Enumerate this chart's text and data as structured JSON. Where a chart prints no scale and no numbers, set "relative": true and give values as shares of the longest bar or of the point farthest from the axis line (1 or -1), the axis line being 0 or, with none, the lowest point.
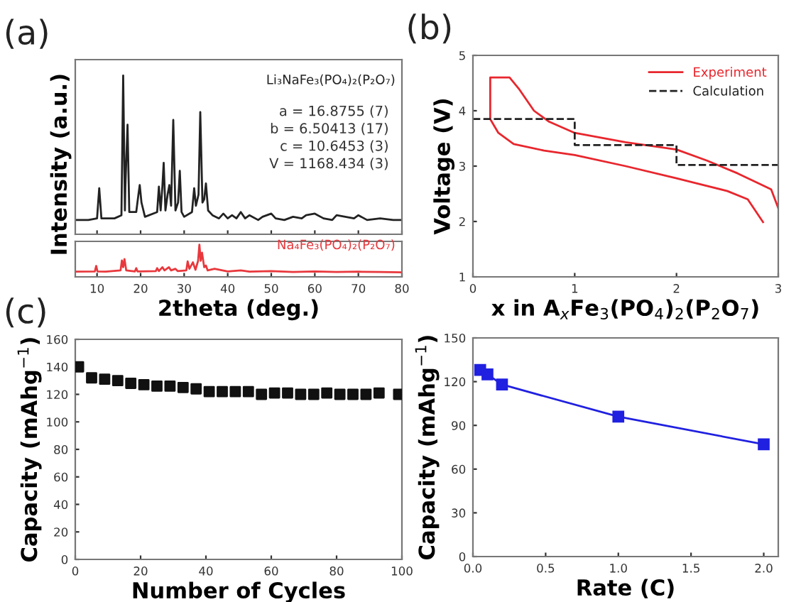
{
  "chart_data": [
    {
      "type": "line",
      "title": "(a)",
      "relative": true,
      "xlim": [
        5,
        80
      ],
      "xticks": [
        10,
        20,
        30,
        40,
        50,
        60,
        70,
        80
      ],
      "tick_labels": false,
      "ylabel": "Intensity (a.u.)",
      "grid": false,
      "legend": false,
      "annotations": [
        "a = 16.8755 (7)",
        "b = 6.50413 (17)",
        "c = 10.6453 (3)",
        "V = 1168.434 (3)"
      ],
      "series": [
        {
          "name": "Li₃NaFe₃(PO₄)₂(P₂O₇)",
          "color": "#222222",
          "x": [
            5,
            8,
            10,
            10.5,
            11,
            14,
            15.6,
            16,
            16.4,
            16.5,
            17,
            17.4,
            19,
            19.5,
            19.8,
            20.2,
            21,
            23.8,
            24.2,
            24.6,
            25,
            25.3,
            25.7,
            26.2,
            26.6,
            27,
            27.5,
            28,
            28.6,
            29,
            29.4,
            30,
            31.8,
            32.3,
            32.7,
            33.3,
            33.7,
            34.2,
            34.6,
            35,
            35.5,
            36.5,
            38,
            39,
            40,
            41,
            42,
            43,
            44,
            45,
            47,
            48,
            50,
            51,
            53,
            55,
            57,
            58,
            60,
            62,
            64,
            65,
            67,
            69,
            70,
            72,
            75,
            78,
            80
          ],
          "values": [
            0.09,
            0.09,
            0.1,
            0.29,
            0.1,
            0.1,
            0.12,
            1.0,
            0.15,
            0.3,
            0.69,
            0.14,
            0.14,
            0.25,
            0.31,
            0.2,
            0.11,
            0.14,
            0.3,
            0.15,
            0.3,
            0.45,
            0.15,
            0.25,
            0.31,
            0.18,
            0.72,
            0.15,
            0.2,
            0.4,
            0.14,
            0.11,
            0.14,
            0.29,
            0.18,
            0.25,
            0.77,
            0.2,
            0.22,
            0.32,
            0.15,
            0.12,
            0.1,
            0.13,
            0.1,
            0.12,
            0.1,
            0.14,
            0.1,
            0.12,
            0.09,
            0.11,
            0.13,
            0.1,
            0.09,
            0.11,
            0.1,
            0.12,
            0.13,
            0.1,
            0.09,
            0.12,
            0.11,
            0.1,
            0.12,
            0.09,
            0.1,
            0.09,
            0.09
          ]
        }
      ]
    },
    {
      "type": "line",
      "relative": true,
      "xlim": [
        5,
        80
      ],
      "xticks": [
        10,
        20,
        30,
        40,
        50,
        60,
        70,
        80
      ],
      "tick_labels": "x",
      "xlabel": "2theta (deg.)",
      "grid": false,
      "legend": false,
      "series": [
        {
          "name": "Na₄Fe₃(PO₄)₂(P₂O₇)",
          "color": "#e8383d",
          "x": [
            5,
            9.5,
            9.8,
            10.1,
            12,
            15.4,
            15.7,
            16,
            16.3,
            16.7,
            18.7,
            19,
            19.3,
            23.5,
            23.8,
            24.2,
            25,
            25.5,
            26.5,
            27,
            28,
            28.5,
            30.5,
            30.8,
            31.2,
            32,
            32.6,
            33.2,
            33.5,
            33.8,
            34.1,
            34.6,
            35,
            35.4,
            37,
            40,
            43,
            45,
            50,
            55,
            60,
            65,
            70,
            75,
            80
          ],
          "values": [
            0.16,
            0.17,
            0.34,
            0.17,
            0.16,
            0.2,
            0.51,
            0.3,
            0.55,
            0.2,
            0.17,
            0.27,
            0.17,
            0.18,
            0.27,
            0.18,
            0.3,
            0.2,
            0.3,
            0.2,
            0.25,
            0.18,
            0.2,
            0.48,
            0.25,
            0.45,
            0.22,
            0.5,
            1.0,
            0.5,
            0.75,
            0.3,
            0.35,
            0.2,
            0.25,
            0.17,
            0.2,
            0.16,
            0.18,
            0.15,
            0.17,
            0.15,
            0.16,
            0.15,
            0.14
          ]
        }
      ]
    },
    {
      "type": "line",
      "title": "(b)",
      "xlim": [
        0,
        3
      ],
      "xticks": [
        0,
        1,
        2,
        3
      ],
      "ylim": [
        1,
        5
      ],
      "yticks": [
        1,
        2,
        3,
        4,
        5
      ],
      "xlabel": "x in A$_{x}$Fe$_{3}$(PO$_{4}$)$_{2}$(P$_{2}$O$_{7}$)",
      "ylabel": "Voltage (V)",
      "grid": false,
      "legend": "top right",
      "series": [
        {
          "name": "Experiment",
          "color": "#e8262d",
          "line_style": "solid",
          "x": [
            2.85,
            2.7,
            2.5,
            2.0,
            1.5,
            1.0,
            0.7,
            0.4,
            0.25,
            0.17,
            0.17,
            0.36,
            0.45,
            0.6,
            0.75,
            1.0,
            1.5,
            2.0,
            2.3,
            2.6,
            2.85,
            2.93,
            3.0
          ],
          "values": [
            1.99,
            2.4,
            2.55,
            2.78,
            3.0,
            3.2,
            3.28,
            3.4,
            3.6,
            3.85,
            4.6,
            4.6,
            4.4,
            4.0,
            3.8,
            3.6,
            3.43,
            3.3,
            3.1,
            2.87,
            2.65,
            2.58,
            2.24
          ]
        },
        {
          "name": "Calculation",
          "color": "#222222",
          "line_style": "dashed",
          "x": [
            0,
            1,
            1,
            2,
            2,
            3
          ],
          "values": [
            3.85,
            3.85,
            3.38,
            3.38,
            3.02,
            3.02
          ]
        }
      ]
    },
    {
      "type": "scatter",
      "title": "(c)",
      "marker": "square",
      "xlim": [
        0,
        100
      ],
      "xticks": [
        0,
        20,
        40,
        60,
        80,
        100
      ],
      "ylim": [
        0,
        160
      ],
      "yticks": [
        0,
        20,
        40,
        60,
        80,
        100,
        120,
        140,
        160
      ],
      "xlabel": "Number of Cycles",
      "ylabel": "Capacity (mAhg$^{−1}$)",
      "grid": false,
      "legend": false,
      "series": [
        {
          "color": "#111111",
          "x": [
            1,
            5,
            9,
            13,
            17,
            21,
            25,
            29,
            33,
            37,
            41,
            45,
            49,
            53,
            57,
            61,
            65,
            69,
            73,
            77,
            81,
            85,
            89,
            93,
            99
          ],
          "values": [
            140,
            132,
            131,
            130,
            128,
            127,
            126,
            126,
            125,
            124,
            122,
            122,
            122,
            122,
            120,
            121,
            121,
            120,
            120,
            121,
            120,
            120,
            120,
            121,
            120
          ]
        }
      ]
    },
    {
      "type": "line",
      "marker": "square",
      "xlim": [
        0,
        2.1
      ],
      "xticks": [
        {
          "value": 0,
          "label": "0.0"
        },
        0.5,
        {
          "value": 1,
          "label": "1.0"
        },
        1.5,
        {
          "value": 2,
          "label": "2.0"
        }
      ],
      "ylim": [
        0,
        150
      ],
      "yticks": [
        0,
        30,
        60,
        90,
        120,
        150
      ],
      "xlabel": "Rate (C)",
      "ylabel": "Capacity (mAhg$^{−1}$)",
      "grid": false,
      "legend": false,
      "series": [
        {
          "color": "#2020e0",
          "x": [
            0.05,
            0.1,
            0.2,
            1.0,
            2.0
          ],
          "values": [
            128,
            125,
            118,
            96,
            77
          ]
        }
      ]
    }
  ]
}
